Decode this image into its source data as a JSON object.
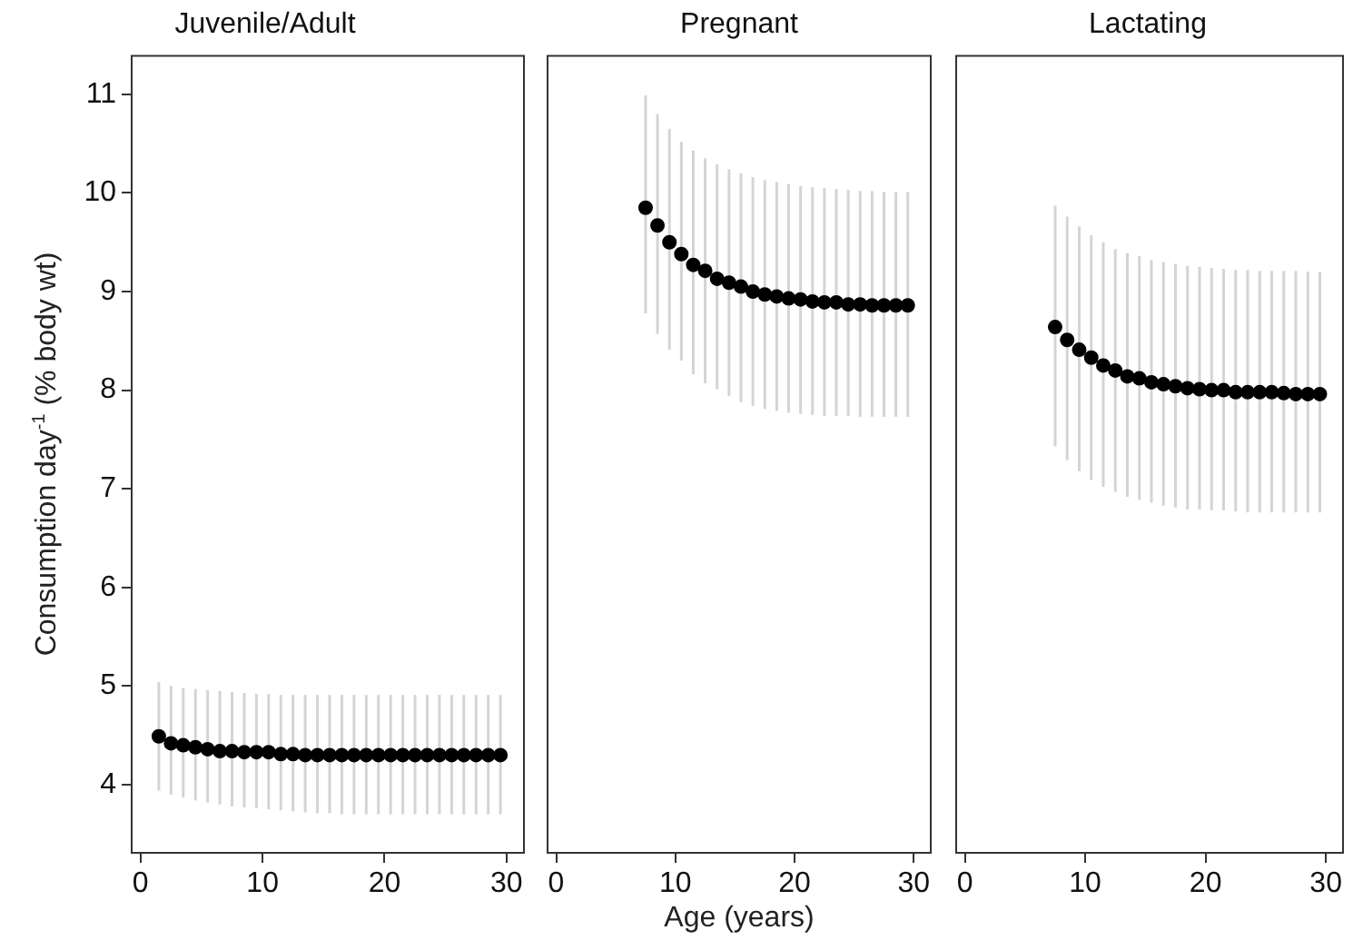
{
  "chart_data": [
    {
      "type": "scatter",
      "title": "Juvenile/Adult",
      "ylabel": "Consumption day$^{-1}$ (% body wt)",
      "marker": "circle",
      "xlim": [
        -0.8,
        31.5
      ],
      "xticks": [
        0,
        10,
        20,
        30
      ],
      "ylim": [
        3.3,
        11.4
      ],
      "yticks": [
        4,
        5,
        6,
        7,
        8,
        9,
        10,
        11
      ],
      "x": [
        1.5,
        2.5,
        3.5,
        4.5,
        5.5,
        6.5,
        7.5,
        8.5,
        9.5,
        10.5,
        11.5,
        12.5,
        13.5,
        14.5,
        15.5,
        16.5,
        17.5,
        18.5,
        19.5,
        20.5,
        21.5,
        22.5,
        23.5,
        24.5,
        25.5,
        26.5,
        27.5,
        28.5,
        29.5
      ],
      "series": [
        {
          "color": "#000000",
          "values": [
            4.49,
            4.42,
            4.4,
            4.38,
            4.36,
            4.34,
            4.34,
            4.33,
            4.33,
            4.33,
            4.31,
            4.31,
            4.3,
            4.3,
            4.3,
            4.3,
            4.3,
            4.3,
            4.3,
            4.3,
            4.3,
            4.3,
            4.3,
            4.3,
            4.3,
            4.3,
            4.3,
            4.3,
            4.3
          ],
          "errors": [
            [
              3.94,
              5.04
            ],
            [
              3.9,
              5.0
            ],
            [
              3.87,
              4.98
            ],
            [
              3.84,
              4.97
            ],
            [
              3.82,
              4.96
            ],
            [
              3.8,
              4.95
            ],
            [
              3.78,
              4.94
            ],
            [
              3.77,
              4.93
            ],
            [
              3.76,
              4.92
            ],
            [
              3.75,
              4.92
            ],
            [
              3.74,
              4.91
            ],
            [
              3.73,
              4.91
            ],
            [
              3.72,
              4.91
            ],
            [
              3.71,
              4.91
            ],
            [
              3.71,
              4.91
            ],
            [
              3.7,
              4.91
            ],
            [
              3.7,
              4.91
            ],
            [
              3.7,
              4.91
            ],
            [
              3.7,
              4.91
            ],
            [
              3.7,
              4.91
            ],
            [
              3.7,
              4.91
            ],
            [
              3.7,
              4.91
            ],
            [
              3.7,
              4.91
            ],
            [
              3.7,
              4.91
            ],
            [
              3.7,
              4.91
            ],
            [
              3.7,
              4.91
            ],
            [
              3.7,
              4.91
            ],
            [
              3.7,
              4.91
            ],
            [
              3.7,
              4.91
            ]
          ]
        }
      ]
    },
    {
      "type": "scatter",
      "title": "Pregnant",
      "xlabel": "Age (years)",
      "marker": "circle",
      "xlim": [
        -0.8,
        31.5
      ],
      "xticks": [
        0,
        10,
        20,
        30
      ],
      "ylim": [
        3.3,
        11.4
      ],
      "tick_labels": "x",
      "x": [
        7.5,
        8.5,
        9.5,
        10.5,
        11.5,
        12.5,
        13.5,
        14.5,
        15.5,
        16.5,
        17.5,
        18.5,
        19.5,
        20.5,
        21.5,
        22.5,
        23.5,
        24.5,
        25.5,
        26.5,
        27.5,
        28.5,
        29.5
      ],
      "series": [
        {
          "color": "#000000",
          "values": [
            9.85,
            9.67,
            9.5,
            9.38,
            9.27,
            9.21,
            9.13,
            9.09,
            9.05,
            9.0,
            8.97,
            8.95,
            8.93,
            8.92,
            8.9,
            8.89,
            8.89,
            8.87,
            8.87,
            8.86,
            8.86,
            8.86,
            8.86
          ],
          "errors": [
            [
              8.78,
              10.99
            ],
            [
              8.57,
              10.8
            ],
            [
              8.41,
              10.65
            ],
            [
              8.3,
              10.52
            ],
            [
              8.16,
              10.43
            ],
            [
              8.07,
              10.35
            ],
            [
              8.01,
              10.29
            ],
            [
              7.94,
              10.24
            ],
            [
              7.88,
              10.2
            ],
            [
              7.84,
              10.16
            ],
            [
              7.81,
              10.13
            ],
            [
              7.79,
              10.11
            ],
            [
              7.77,
              10.09
            ],
            [
              7.76,
              10.07
            ],
            [
              7.75,
              10.06
            ],
            [
              7.74,
              10.05
            ],
            [
              7.74,
              10.04
            ],
            [
              7.74,
              10.03
            ],
            [
              7.73,
              10.02
            ],
            [
              7.73,
              10.02
            ],
            [
              7.73,
              10.01
            ],
            [
              7.73,
              10.01
            ],
            [
              7.73,
              10.01
            ]
          ]
        }
      ]
    },
    {
      "type": "scatter",
      "title": "Lactating",
      "marker": "circle",
      "xlim": [
        -0.8,
        31.5
      ],
      "xticks": [
        0,
        10,
        20,
        30
      ],
      "ylim": [
        3.3,
        11.4
      ],
      "tick_labels": "x",
      "x": [
        7.5,
        8.5,
        9.5,
        10.5,
        11.5,
        12.5,
        13.5,
        14.5,
        15.5,
        16.5,
        17.5,
        18.5,
        19.5,
        20.5,
        21.5,
        22.5,
        23.5,
        24.5,
        25.5,
        26.5,
        27.5,
        28.5,
        29.5
      ],
      "series": [
        {
          "color": "#000000",
          "values": [
            8.64,
            8.51,
            8.41,
            8.33,
            8.25,
            8.2,
            8.14,
            8.12,
            8.08,
            8.06,
            8.04,
            8.02,
            8.01,
            8.0,
            8.0,
            7.98,
            7.98,
            7.98,
            7.98,
            7.97,
            7.96,
            7.96,
            7.96
          ],
          "errors": [
            [
              7.43,
              9.87
            ],
            [
              7.29,
              9.76
            ],
            [
              7.18,
              9.66
            ],
            [
              7.09,
              9.57
            ],
            [
              7.02,
              9.5
            ],
            [
              6.97,
              9.43
            ],
            [
              6.92,
              9.39
            ],
            [
              6.89,
              9.36
            ],
            [
              6.86,
              9.32
            ],
            [
              6.83,
              9.3
            ],
            [
              6.81,
              9.28
            ],
            [
              6.79,
              9.26
            ],
            [
              6.79,
              9.25
            ],
            [
              6.78,
              9.24
            ],
            [
              6.78,
              9.23
            ],
            [
              6.77,
              9.22
            ],
            [
              6.76,
              9.22
            ],
            [
              6.76,
              9.21
            ],
            [
              6.76,
              9.21
            ],
            [
              6.76,
              9.21
            ],
            [
              6.76,
              9.21
            ],
            [
              6.76,
              9.2
            ],
            [
              6.76,
              9.2
            ]
          ]
        }
      ]
    }
  ]
}
